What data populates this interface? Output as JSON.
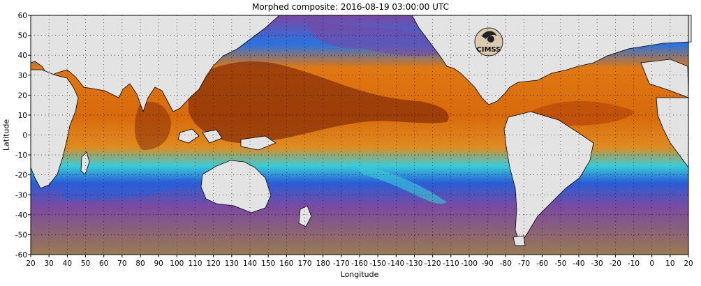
{
  "title": "Morphed composite: 2016-08-19 03:00:00 UTC",
  "xlabel": "Longitude",
  "ylabel": "Latitude",
  "logo_text": "CIMSS",
  "colors": {
    "land": "#e3e3e3",
    "dry": "#9a7a52",
    "low": "#7e4aa0",
    "mid": "#1f6ee0",
    "moist": "#3ad6e0",
    "wet": "#e07a10",
    "very_wet": "#8a2e06"
  },
  "chart_data": {
    "type": "heatmap",
    "title": "Morphed composite: 2016-08-19 03:00:00 UTC",
    "xlabel": "Longitude",
    "ylabel": "Latitude",
    "xlim": [
      20,
      380
    ],
    "ylim": [
      -60,
      60
    ],
    "x_ticks": [
      "20",
      "30",
      "40",
      "50",
      "60",
      "70",
      "80",
      "90",
      "100",
      "110",
      "120",
      "130",
      "140",
      "150",
      "160",
      "170",
      "180",
      "-170",
      "-160",
      "-150",
      "-140",
      "-130",
      "-120",
      "-110",
      "-100",
      "-90",
      "-80",
      "-70",
      "-60",
      "-50",
      "-40",
      "-30",
      "-20",
      "-10",
      "0",
      "10",
      "20"
    ],
    "y_ticks": [
      "60",
      "50",
      "40",
      "30",
      "20",
      "10",
      "0",
      "-10",
      "-20",
      "-30",
      "-40",
      "-50",
      "-60"
    ],
    "grid": true
  }
}
